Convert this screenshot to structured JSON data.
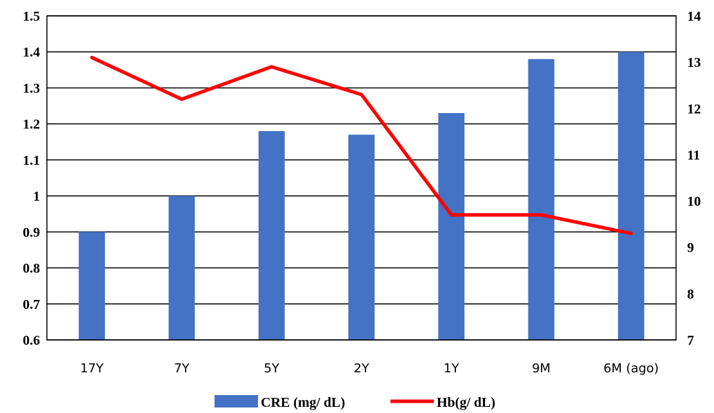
{
  "chart_data": {
    "type": "bar",
    "categories": [
      "17Y",
      "7Y",
      "5Y",
      "2Y",
      "1Y",
      "9M",
      "6M (ago)"
    ],
    "series": [
      {
        "name": "CRE (mg/ dL)",
        "type": "bar",
        "axis": "left",
        "color": "#4472C4",
        "values": [
          0.9,
          1.0,
          1.18,
          1.17,
          1.23,
          1.38,
          1.4
        ]
      },
      {
        "name": "Hb(g/ dL)",
        "type": "line",
        "axis": "right",
        "color": "#FF0000",
        "values": [
          13.1,
          12.2,
          12.9,
          12.3,
          9.7,
          9.7,
          9.3
        ]
      }
    ],
    "y_left": {
      "min": 0.6,
      "max": 1.5,
      "ticks": [
        "0.6",
        "0.7",
        "0.8",
        "0.9",
        "1",
        "1.1",
        "1.2",
        "1.3",
        "1.4",
        "1.5"
      ]
    },
    "y_right": {
      "min": 7,
      "max": 14,
      "ticks": [
        "7",
        "8",
        "9",
        "10",
        "11",
        "12",
        "13",
        "14"
      ]
    },
    "grid": true,
    "legend": "bottom-center",
    "title": "",
    "xlabel": "",
    "ylabel": ""
  }
}
